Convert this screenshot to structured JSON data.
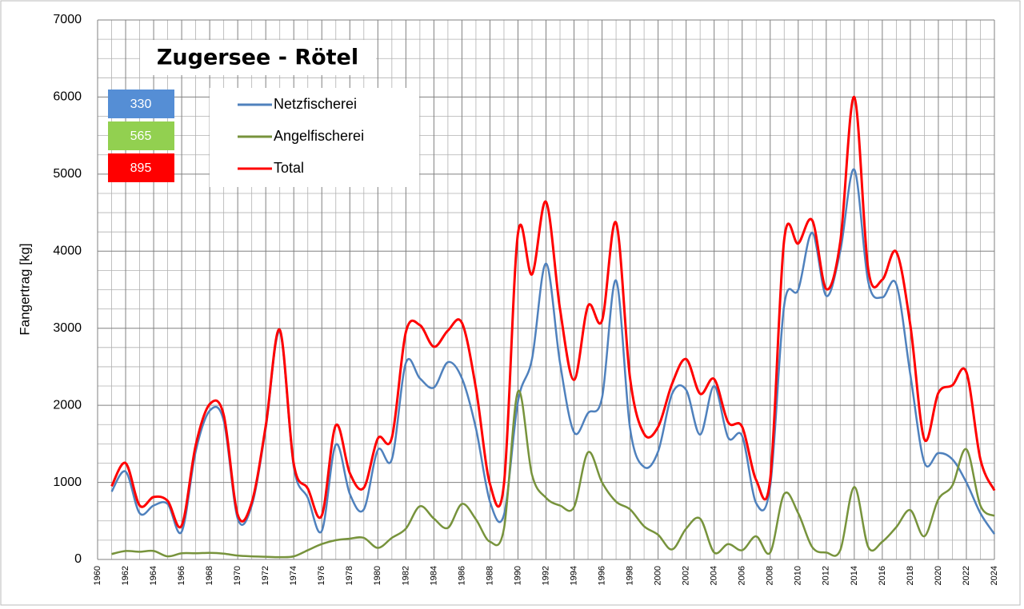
{
  "chart_data": {
    "type": "line",
    "title": "Zugersee - Rötel",
    "y_label": "Fangertrag [kg]",
    "x": [
      1961,
      1962,
      1963,
      1964,
      1965,
      1966,
      1967,
      1968,
      1969,
      1970,
      1971,
      1972,
      1973,
      1974,
      1975,
      1976,
      1977,
      1978,
      1979,
      1980,
      1981,
      1982,
      1983,
      1984,
      1985,
      1986,
      1987,
      1988,
      1989,
      1990,
      1991,
      1992,
      1993,
      1994,
      1995,
      1996,
      1997,
      1998,
      1999,
      2000,
      2001,
      2002,
      2003,
      2004,
      2005,
      2006,
      2007,
      2008,
      2009,
      2010,
      2011,
      2012,
      2013,
      2014,
      2015,
      2016,
      2017,
      2018,
      2019,
      2020,
      2021,
      2022,
      2023,
      2024
    ],
    "series": [
      {
        "name": "Netzfischerei",
        "color": "#4f81bd",
        "values": [
          880,
          1140,
          600,
          700,
          720,
          360,
          1400,
          1930,
          1800,
          530,
          700,
          1700,
          2950,
          1200,
          800,
          370,
          1490,
          850,
          650,
          1420,
          1300,
          2550,
          2350,
          2230,
          2560,
          2350,
          1700,
          750,
          580,
          2050,
          2600,
          3840,
          2550,
          1650,
          1900,
          2100,
          3620,
          1700,
          1200,
          1400,
          2150,
          2200,
          1620,
          2250,
          1580,
          1600,
          730,
          950,
          3300,
          3500,
          4240,
          3420,
          4000,
          5060,
          3600,
          3400,
          3570,
          2400,
          1260,
          1380,
          1300,
          1000,
          600,
          330
        ]
      },
      {
        "name": "Angelfischerei",
        "color": "#77933c",
        "values": [
          70,
          110,
          100,
          110,
          40,
          80,
          80,
          85,
          75,
          50,
          40,
          35,
          30,
          40,
          120,
          200,
          250,
          270,
          280,
          150,
          280,
          400,
          690,
          530,
          410,
          720,
          520,
          230,
          400,
          2180,
          1100,
          800,
          700,
          680,
          1390,
          1000,
          750,
          650,
          430,
          320,
          130,
          400,
          530,
          90,
          200,
          120,
          300,
          90,
          850,
          600,
          160,
          90,
          120,
          940,
          160,
          230,
          420,
          640,
          300,
          780,
          960,
          1430,
          700,
          565
        ]
      },
      {
        "name": "Total",
        "color": "#ff0000",
        "values": [
          950,
          1250,
          700,
          810,
          760,
          440,
          1480,
          2015,
          1875,
          580,
          740,
          1735,
          2980,
          1240,
          920,
          570,
          1740,
          1120,
          930,
          1570,
          1580,
          2950,
          3040,
          2760,
          2970,
          3070,
          2220,
          980,
          980,
          4230,
          3700,
          4640,
          3250,
          2330,
          3290,
          3100,
          4370,
          2350,
          1630,
          1720,
          2280,
          2600,
          2150,
          2340,
          1780,
          1720,
          1030,
          1040,
          4150,
          4100,
          4400,
          3510,
          4120,
          6000,
          3760,
          3630,
          3990,
          3040,
          1560,
          2160,
          2260,
          2430,
          1300,
          895
        ]
      }
    ],
    "summary_boxes": [
      {
        "text": "330",
        "color": "#558ed5"
      },
      {
        "text": "565",
        "color": "#92d050"
      },
      {
        "text": "895",
        "color": "#ff0000"
      }
    ],
    "xlim": [
      1960,
      2024
    ],
    "xticks": [
      1960,
      1962,
      1964,
      1966,
      1968,
      1970,
      1972,
      1974,
      1976,
      1978,
      1980,
      1982,
      1984,
      1986,
      1988,
      1990,
      1992,
      1994,
      1996,
      1998,
      2000,
      2002,
      2004,
      2006,
      2008,
      2010,
      2012,
      2014,
      2016,
      2018,
      2020,
      2022,
      2024
    ],
    "xminorticks": [
      1961,
      1963,
      1965,
      1967,
      1969,
      1971,
      1973,
      1975,
      1977,
      1979,
      1981,
      1983,
      1985,
      1987,
      1989,
      1991,
      1993,
      1995,
      1997,
      1999,
      2001,
      2003,
      2005,
      2007,
      2009,
      2011,
      2013,
      2015,
      2017,
      2019,
      2021,
      2023
    ],
    "ylim": [
      0,
      7000
    ],
    "yticks": [
      0,
      1000,
      2000,
      3000,
      4000,
      5000,
      6000,
      7000
    ],
    "yminorticks": [
      250,
      500,
      750,
      1250,
      1500,
      1750,
      2250,
      2500,
      2750,
      3250,
      3500,
      3750,
      4250,
      4500,
      4750,
      5250,
      5500,
      5750,
      6250,
      6500,
      6750
    ],
    "grid": true
  }
}
